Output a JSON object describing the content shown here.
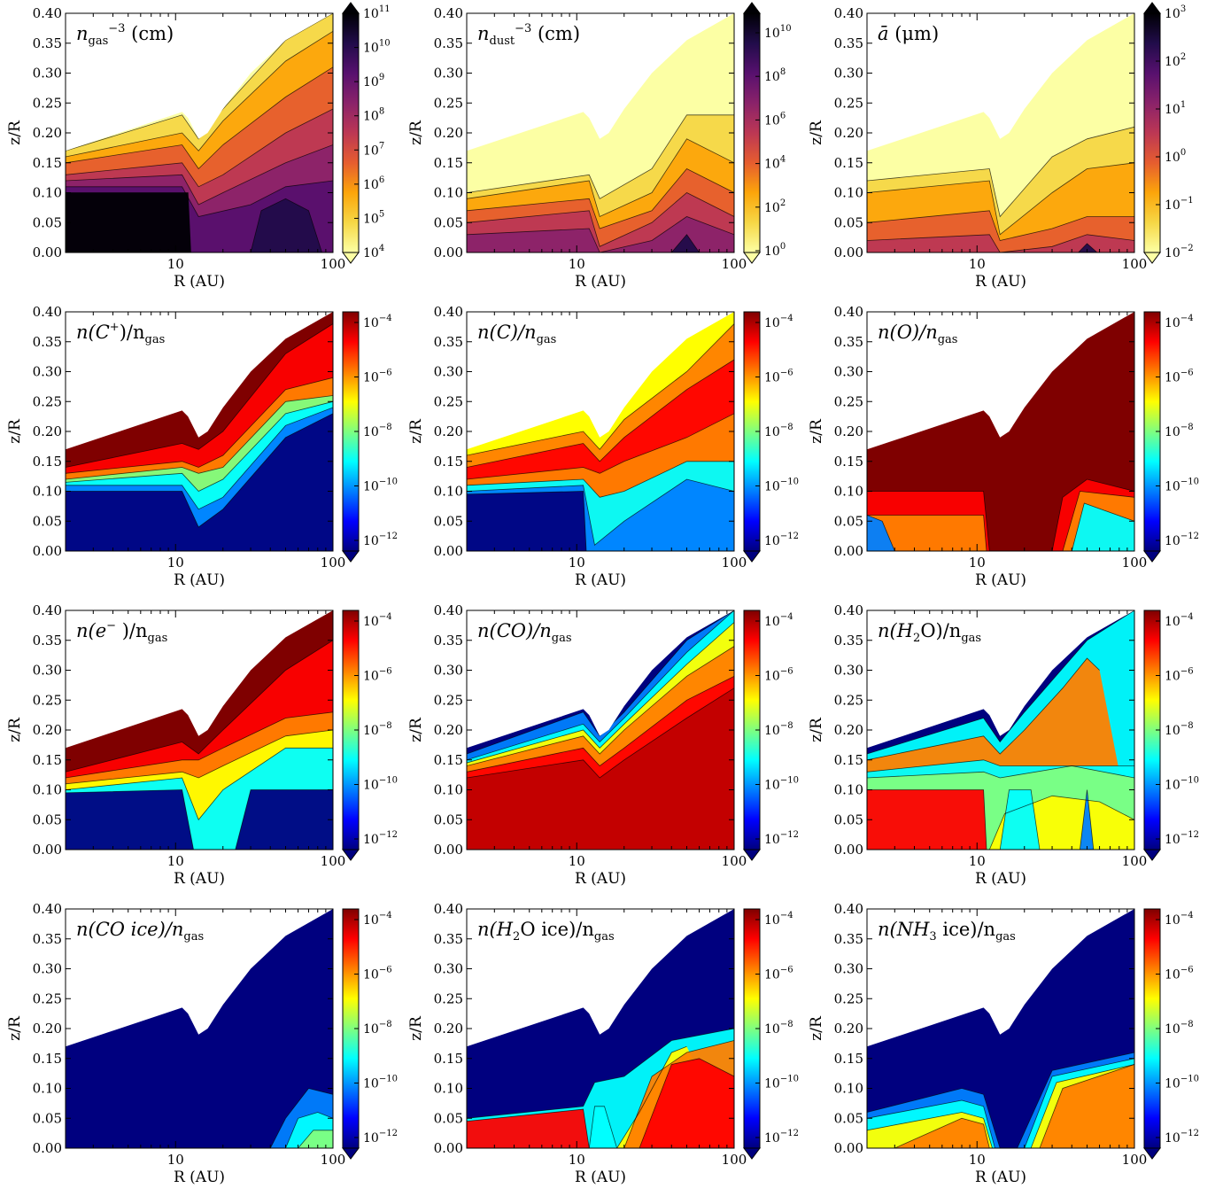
{
  "chart_data": [
    {
      "type": "heatmap",
      "name": "ngas",
      "title_main": "n",
      "title_sub": "gas",
      "title_rest": " (cm",
      "title_sup": "−3",
      "title_tail": ")",
      "xlabel": "R (AU)",
      "ylabel": "z/R",
      "x_ticks": [
        "10",
        "100"
      ],
      "y_ticks": [
        "0.00",
        "0.05",
        "0.10",
        "0.15",
        "0.20",
        "0.25",
        "0.30",
        "0.35",
        "0.40"
      ],
      "xlim": [
        2,
        100
      ],
      "ylim": [
        0,
        0.4
      ],
      "x_scale": "log",
      "colormap": "inferno_r",
      "colorbar": {
        "scale": "log",
        "min_exp": 4,
        "max_exp": 11,
        "labels": [
          "10",
          "10",
          "10",
          "10",
          "10",
          "10",
          "10",
          "10"
        ],
        "exps": [
          "4",
          "5",
          "6",
          "7",
          "8",
          "9",
          "10",
          "11"
        ],
        "extend": "both"
      }
    },
    {
      "type": "heatmap",
      "name": "ndust",
      "title_main": "n",
      "title_sub": "dust",
      "title_rest": " (cm",
      "title_sup": "−3",
      "title_tail": ")",
      "xlabel": "R (AU)",
      "ylabel": "z/R",
      "x_ticks": [
        "10",
        "100"
      ],
      "y_ticks": [
        "0.00",
        "0.05",
        "0.10",
        "0.15",
        "0.20",
        "0.25",
        "0.30",
        "0.35",
        "0.40"
      ],
      "xlim": [
        2,
        100
      ],
      "ylim": [
        0,
        0.4
      ],
      "x_scale": "log",
      "colormap": "inferno_r",
      "colorbar": {
        "scale": "log",
        "min_exp": 0,
        "max_exp": 11,
        "labels": [
          "10",
          "10",
          "10",
          "10",
          "10",
          "10"
        ],
        "exps": [
          "0",
          "2",
          "4",
          "6",
          "8",
          "10"
        ],
        "extend": "both"
      }
    },
    {
      "type": "heatmap",
      "name": "abar",
      "title_main": "ā",
      "title_sub": "",
      "title_rest": " (μm)",
      "title_sup": "",
      "title_tail": "",
      "xlabel": "R (AU)",
      "ylabel": "z/R",
      "x_ticks": [
        "10",
        "100"
      ],
      "y_ticks": [
        "0.00",
        "0.05",
        "0.10",
        "0.15",
        "0.20",
        "0.25",
        "0.30",
        "0.35",
        "0.40"
      ],
      "xlim": [
        2,
        100
      ],
      "ylim": [
        0,
        0.4
      ],
      "x_scale": "log",
      "colormap": "inferno_r",
      "colorbar": {
        "scale": "log",
        "min_exp": -2,
        "max_exp": 3,
        "labels": [
          "10",
          "10",
          "10",
          "10",
          "10",
          "10"
        ],
        "exps": [
          "−2",
          "−1",
          "0",
          "1",
          "2",
          "3"
        ],
        "extend": "both"
      }
    },
    {
      "type": "heatmap",
      "name": "Cplus",
      "title_main": "n(C",
      "title_sub": "",
      "title_rest": "",
      "title_sup": "+",
      "title_tail": ")/n",
      "title_sub2": "gas",
      "xlabel": "R (AU)",
      "ylabel": "z/R",
      "x_ticks": [
        "10",
        "100"
      ],
      "y_ticks": [
        "0.00",
        "0.05",
        "0.10",
        "0.15",
        "0.20",
        "0.25",
        "0.30",
        "0.35",
        "0.40"
      ],
      "xlim": [
        2,
        100
      ],
      "ylim": [
        0,
        0.4
      ],
      "x_scale": "log",
      "colormap": "jet",
      "colorbar": {
        "scale": "log",
        "min_exp": -12,
        "max_exp": -3.6,
        "labels": [
          "10",
          "10",
          "10",
          "10",
          "10"
        ],
        "exps": [
          "−4",
          "−6",
          "−8",
          "−10",
          "−12"
        ],
        "extend": "min"
      }
    },
    {
      "type": "heatmap",
      "name": "C",
      "title_main": "n(C)/n",
      "title_sub": "gas",
      "title_rest": "",
      "title_sup": "",
      "title_tail": "",
      "xlabel": "R (AU)",
      "ylabel": "z/R",
      "x_ticks": [
        "10",
        "100"
      ],
      "y_ticks": [
        "0.00",
        "0.05",
        "0.10",
        "0.15",
        "0.20",
        "0.25",
        "0.30",
        "0.35",
        "0.40"
      ],
      "xlim": [
        2,
        100
      ],
      "ylim": [
        0,
        0.4
      ],
      "x_scale": "log",
      "colormap": "jet",
      "colorbar": {
        "scale": "log",
        "min_exp": -12,
        "max_exp": -3.6,
        "labels": [
          "10",
          "10",
          "10",
          "10",
          "10"
        ],
        "exps": [
          "−4",
          "−6",
          "−8",
          "−10",
          "−12"
        ],
        "extend": "min"
      }
    },
    {
      "type": "heatmap",
      "name": "O",
      "title_main": "n(O)/n",
      "title_sub": "gas",
      "title_rest": "",
      "title_sup": "",
      "title_tail": "",
      "xlabel": "R (AU)",
      "ylabel": "z/R",
      "x_ticks": [
        "10",
        "100"
      ],
      "y_ticks": [
        "0.00",
        "0.05",
        "0.10",
        "0.15",
        "0.20",
        "0.25",
        "0.30",
        "0.35",
        "0.40"
      ],
      "xlim": [
        2,
        100
      ],
      "ylim": [
        0,
        0.4
      ],
      "x_scale": "log",
      "colormap": "jet",
      "colorbar": {
        "scale": "log",
        "min_exp": -12,
        "max_exp": -3.6,
        "labels": [
          "10",
          "10",
          "10",
          "10",
          "10"
        ],
        "exps": [
          "−4",
          "−6",
          "−8",
          "−10",
          "−12"
        ],
        "extend": "min"
      }
    },
    {
      "type": "heatmap",
      "name": "electron",
      "title_main": "n(e",
      "title_sub": "",
      "title_rest": "",
      "title_sup": "−",
      "title_tail": " )/n",
      "title_sub2": "gas",
      "xlabel": "R (AU)",
      "ylabel": "z/R",
      "x_ticks": [
        "10",
        "100"
      ],
      "y_ticks": [
        "0.00",
        "0.05",
        "0.10",
        "0.15",
        "0.20",
        "0.25",
        "0.30",
        "0.35",
        "0.40"
      ],
      "xlim": [
        2,
        100
      ],
      "ylim": [
        0,
        0.4
      ],
      "x_scale": "log",
      "colormap": "jet",
      "colorbar": {
        "scale": "log",
        "min_exp": -12,
        "max_exp": -3.6,
        "labels": [
          "10",
          "10",
          "10",
          "10",
          "10"
        ],
        "exps": [
          "−4",
          "−6",
          "−8",
          "−10",
          "−12"
        ],
        "extend": "min"
      }
    },
    {
      "type": "heatmap",
      "name": "CO",
      "title_main": "n(CO)/n",
      "title_sub": "gas",
      "title_rest": "",
      "title_sup": "",
      "title_tail": "",
      "xlabel": "R (AU)",
      "ylabel": "z/R",
      "x_ticks": [
        "10",
        "100"
      ],
      "y_ticks": [
        "0.00",
        "0.05",
        "0.10",
        "0.15",
        "0.20",
        "0.25",
        "0.30",
        "0.35",
        "0.40"
      ],
      "xlim": [
        2,
        100
      ],
      "ylim": [
        0,
        0.4
      ],
      "x_scale": "log",
      "colormap": "jet",
      "colorbar": {
        "scale": "log",
        "min_exp": -12,
        "max_exp": -3.6,
        "labels": [
          "10",
          "10",
          "10",
          "10",
          "10"
        ],
        "exps": [
          "−4",
          "−6",
          "−8",
          "−10",
          "−12"
        ],
        "extend": "min"
      }
    },
    {
      "type": "heatmap",
      "name": "H2O",
      "title_main": "n(H",
      "title_sub": "2",
      "title_rest": "O)/n",
      "title_sup": "",
      "title_tail": "",
      "title_sub2": "gas",
      "xlabel": "R (AU)",
      "ylabel": "z/R",
      "x_ticks": [
        "10",
        "100"
      ],
      "y_ticks": [
        "0.00",
        "0.05",
        "0.10",
        "0.15",
        "0.20",
        "0.25",
        "0.30",
        "0.35",
        "0.40"
      ],
      "xlim": [
        2,
        100
      ],
      "ylim": [
        0,
        0.4
      ],
      "x_scale": "log",
      "colormap": "jet",
      "colorbar": {
        "scale": "log",
        "min_exp": -12,
        "max_exp": -3.6,
        "labels": [
          "10",
          "10",
          "10",
          "10",
          "10"
        ],
        "exps": [
          "−4",
          "−6",
          "−8",
          "−10",
          "−12"
        ],
        "extend": "min"
      }
    },
    {
      "type": "heatmap",
      "name": "COice",
      "title_main": "n(CO ice)/n",
      "title_sub": "gas",
      "title_rest": "",
      "title_sup": "",
      "title_tail": "",
      "xlabel": "R (AU)",
      "ylabel": "z/R",
      "x_ticks": [
        "10",
        "100"
      ],
      "y_ticks": [
        "0.00",
        "0.05",
        "0.10",
        "0.15",
        "0.20",
        "0.25",
        "0.30",
        "0.35",
        "0.40"
      ],
      "xlim": [
        2,
        100
      ],
      "ylim": [
        0,
        0.4
      ],
      "x_scale": "log",
      "colormap": "jet",
      "colorbar": {
        "scale": "log",
        "min_exp": -12,
        "max_exp": -3.6,
        "labels": [
          "10",
          "10",
          "10",
          "10",
          "10"
        ],
        "exps": [
          "−4",
          "−6",
          "−8",
          "−10",
          "−12"
        ],
        "extend": "min"
      }
    },
    {
      "type": "heatmap",
      "name": "H2Oice",
      "title_main": "n(H",
      "title_sub": "2",
      "title_rest": "O ice)/n",
      "title_sup": "",
      "title_tail": "",
      "title_sub2": "gas",
      "xlabel": "R (AU)",
      "ylabel": "z/R",
      "x_ticks": [
        "10",
        "100"
      ],
      "y_ticks": [
        "0.00",
        "0.05",
        "0.10",
        "0.15",
        "0.20",
        "0.25",
        "0.30",
        "0.35",
        "0.40"
      ],
      "xlim": [
        2,
        100
      ],
      "ylim": [
        0,
        0.4
      ],
      "x_scale": "log",
      "colormap": "jet",
      "colorbar": {
        "scale": "log",
        "min_exp": -12,
        "max_exp": -3.6,
        "labels": [
          "10",
          "10",
          "10",
          "10",
          "10"
        ],
        "exps": [
          "−4",
          "−6",
          "−8",
          "−10",
          "−12"
        ],
        "extend": "min"
      }
    },
    {
      "type": "heatmap",
      "name": "NH3ice",
      "title_main": "n(NH",
      "title_sub": "3",
      "title_rest": " ice)/n",
      "title_sup": "",
      "title_tail": "",
      "title_sub2": "gas",
      "xlabel": "R (AU)",
      "ylabel": "z/R",
      "x_ticks": [
        "10",
        "100"
      ],
      "y_ticks": [
        "0.00",
        "0.05",
        "0.10",
        "0.15",
        "0.20",
        "0.25",
        "0.30",
        "0.35",
        "0.40"
      ],
      "xlim": [
        2,
        100
      ],
      "ylim": [
        0,
        0.4
      ],
      "x_scale": "log",
      "colormap": "jet",
      "colorbar": {
        "scale": "log",
        "min_exp": -12,
        "max_exp": -3.6,
        "labels": [
          "10",
          "10",
          "10",
          "10",
          "10"
        ],
        "exps": [
          "−4",
          "−6",
          "−8",
          "−10",
          "−12"
        ],
        "extend": "min"
      }
    }
  ],
  "colors": {
    "jet": [
      "#00007f",
      "#0000ff",
      "#007fff",
      "#00ffff",
      "#7fff7f",
      "#ffff00",
      "#ff7f00",
      "#ff0000",
      "#7f0000"
    ],
    "inferno_r": [
      "#fcffa4",
      "#f6d746",
      "#fca50a",
      "#e65d2f",
      "#bc3754",
      "#8a226a",
      "#57106e",
      "#210c4a",
      "#000004"
    ]
  }
}
